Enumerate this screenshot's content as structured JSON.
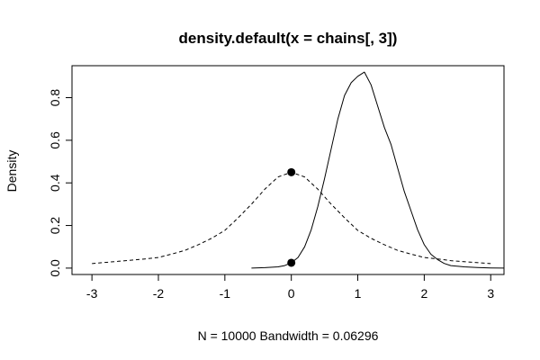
{
  "chart_data": {
    "type": "line",
    "title": "density.default(x = chains[, 3])",
    "xlabel": "N = 10000   Bandwidth = 0.06296",
    "ylabel": "Density",
    "xlim": [
      -3.3,
      3.2
    ],
    "ylim": [
      -0.03,
      0.95
    ],
    "x_ticks": [
      -3,
      -2,
      -1,
      0,
      1,
      2,
      3
    ],
    "x_tick_labels": [
      "-3",
      "-2",
      "-1",
      "0",
      "1",
      "2",
      "3"
    ],
    "y_ticks": [
      0.0,
      0.2,
      0.4,
      0.6,
      0.8
    ],
    "y_tick_labels": [
      "0.0",
      "0.2",
      "0.4",
      "0.6",
      "0.8"
    ],
    "grid": false,
    "legend": "none",
    "series": [
      {
        "style": "solid",
        "color": "#000000",
        "x": [
          -0.6,
          -0.4,
          -0.2,
          -0.1,
          0.0,
          0.1,
          0.2,
          0.3,
          0.4,
          0.5,
          0.6,
          0.7,
          0.8,
          0.9,
          1.0,
          1.1,
          1.2,
          1.3,
          1.4,
          1.5,
          1.6,
          1.7,
          1.8,
          1.9,
          2.0,
          2.1,
          2.2,
          2.3,
          2.4,
          2.6,
          2.8,
          3.0,
          3.2
        ],
        "y": [
          0.0,
          0.002,
          0.006,
          0.012,
          0.025,
          0.05,
          0.1,
          0.18,
          0.29,
          0.42,
          0.56,
          0.7,
          0.81,
          0.87,
          0.9,
          0.92,
          0.86,
          0.76,
          0.66,
          0.58,
          0.47,
          0.36,
          0.27,
          0.18,
          0.11,
          0.065,
          0.04,
          0.022,
          0.012,
          0.006,
          0.003,
          0.001,
          0.0
        ]
      },
      {
        "style": "dashed",
        "color": "#000000",
        "x": [
          -3.0,
          -2.6,
          -2.2,
          -2.0,
          -1.8,
          -1.6,
          -1.4,
          -1.2,
          -1.0,
          -0.8,
          -0.6,
          -0.4,
          -0.2,
          0.0,
          0.2,
          0.4,
          0.6,
          0.8,
          1.0,
          1.2,
          1.4,
          1.6,
          1.8,
          2.0,
          2.2,
          2.4,
          2.6,
          3.0
        ],
        "y": [
          0.021,
          0.032,
          0.043,
          0.05,
          0.066,
          0.083,
          0.11,
          0.14,
          0.177,
          0.236,
          0.3,
          0.37,
          0.428,
          0.45,
          0.428,
          0.37,
          0.3,
          0.236,
          0.177,
          0.14,
          0.11,
          0.083,
          0.066,
          0.05,
          0.043,
          0.035,
          0.03,
          0.021
        ]
      }
    ],
    "points": [
      {
        "x": 0.0,
        "y": 0.45
      },
      {
        "x": 0.0,
        "y": 0.025
      }
    ]
  }
}
